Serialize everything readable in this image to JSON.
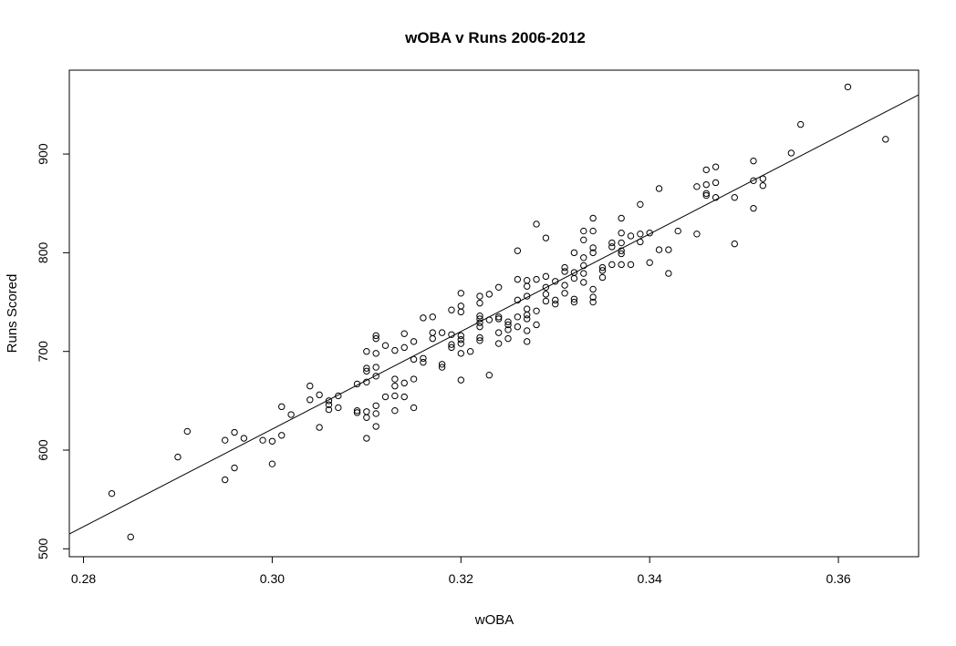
{
  "chart_data": {
    "type": "scatter",
    "title": "wOBA v Runs 2006-2012",
    "xlabel": "wOBA",
    "ylabel": "Runs Scored",
    "xlim": [
      0.2785,
      0.3685
    ],
    "ylim": [
      492,
      985
    ],
    "x_ticks": [
      "0.28",
      "0.30",
      "0.32",
      "0.34",
      "0.36"
    ],
    "y_ticks": [
      "500",
      "600",
      "700",
      "800",
      "900"
    ],
    "trend_line": {
      "x": [
        0.2785,
        0.3685
      ],
      "y": [
        515,
        960
      ]
    },
    "points": [
      [
        0.283,
        556
      ],
      [
        0.285,
        512
      ],
      [
        0.29,
        593
      ],
      [
        0.291,
        619
      ],
      [
        0.295,
        610
      ],
      [
        0.295,
        570
      ],
      [
        0.296,
        582
      ],
      [
        0.296,
        618
      ],
      [
        0.297,
        612
      ],
      [
        0.299,
        610
      ],
      [
        0.3,
        609
      ],
      [
        0.3,
        586
      ],
      [
        0.301,
        615
      ],
      [
        0.301,
        644
      ],
      [
        0.302,
        636
      ],
      [
        0.304,
        665
      ],
      [
        0.304,
        651
      ],
      [
        0.305,
        656
      ],
      [
        0.305,
        623
      ],
      [
        0.306,
        646
      ],
      [
        0.306,
        641
      ],
      [
        0.306,
        650
      ],
      [
        0.307,
        655
      ],
      [
        0.307,
        643
      ],
      [
        0.309,
        667
      ],
      [
        0.309,
        640
      ],
      [
        0.309,
        638
      ],
      [
        0.31,
        700
      ],
      [
        0.31,
        683
      ],
      [
        0.31,
        680
      ],
      [
        0.31,
        669
      ],
      [
        0.31,
        639
      ],
      [
        0.31,
        612
      ],
      [
        0.31,
        633
      ],
      [
        0.311,
        716
      ],
      [
        0.311,
        713
      ],
      [
        0.311,
        698
      ],
      [
        0.311,
        684
      ],
      [
        0.311,
        675
      ],
      [
        0.311,
        645
      ],
      [
        0.311,
        624
      ],
      [
        0.311,
        637
      ],
      [
        0.312,
        706
      ],
      [
        0.312,
        654
      ],
      [
        0.313,
        701
      ],
      [
        0.313,
        672
      ],
      [
        0.313,
        665
      ],
      [
        0.313,
        655
      ],
      [
        0.313,
        640
      ],
      [
        0.314,
        718
      ],
      [
        0.314,
        704
      ],
      [
        0.314,
        668
      ],
      [
        0.314,
        654
      ],
      [
        0.315,
        710
      ],
      [
        0.315,
        692
      ],
      [
        0.315,
        672
      ],
      [
        0.315,
        643
      ],
      [
        0.316,
        734
      ],
      [
        0.316,
        693
      ],
      [
        0.316,
        689
      ],
      [
        0.317,
        735
      ],
      [
        0.317,
        719
      ],
      [
        0.317,
        713
      ],
      [
        0.318,
        719
      ],
      [
        0.318,
        687
      ],
      [
        0.318,
        684
      ],
      [
        0.319,
        742
      ],
      [
        0.319,
        717
      ],
      [
        0.319,
        707
      ],
      [
        0.319,
        704
      ],
      [
        0.32,
        759
      ],
      [
        0.32,
        746
      ],
      [
        0.32,
        740
      ],
      [
        0.32,
        716
      ],
      [
        0.32,
        712
      ],
      [
        0.32,
        708
      ],
      [
        0.32,
        698
      ],
      [
        0.32,
        671
      ],
      [
        0.321,
        700
      ],
      [
        0.322,
        756
      ],
      [
        0.322,
        749
      ],
      [
        0.322,
        736
      ],
      [
        0.322,
        733
      ],
      [
        0.322,
        729
      ],
      [
        0.322,
        725
      ],
      [
        0.322,
        714
      ],
      [
        0.322,
        711
      ],
      [
        0.323,
        758
      ],
      [
        0.323,
        732
      ],
      [
        0.323,
        676
      ],
      [
        0.324,
        765
      ],
      [
        0.324,
        735
      ],
      [
        0.324,
        733
      ],
      [
        0.324,
        719
      ],
      [
        0.324,
        708
      ],
      [
        0.325,
        730
      ],
      [
        0.325,
        727
      ],
      [
        0.325,
        722
      ],
      [
        0.325,
        713
      ],
      [
        0.326,
        802
      ],
      [
        0.326,
        773
      ],
      [
        0.326,
        752
      ],
      [
        0.326,
        735
      ],
      [
        0.326,
        725
      ],
      [
        0.327,
        772
      ],
      [
        0.327,
        766
      ],
      [
        0.327,
        756
      ],
      [
        0.327,
        743
      ],
      [
        0.327,
        737
      ],
      [
        0.327,
        733
      ],
      [
        0.327,
        721
      ],
      [
        0.327,
        710
      ],
      [
        0.328,
        829
      ],
      [
        0.328,
        773
      ],
      [
        0.328,
        741
      ],
      [
        0.328,
        727
      ],
      [
        0.329,
        815
      ],
      [
        0.329,
        776
      ],
      [
        0.329,
        765
      ],
      [
        0.329,
        758
      ],
      [
        0.329,
        751
      ],
      [
        0.33,
        771
      ],
      [
        0.33,
        752
      ],
      [
        0.33,
        748
      ],
      [
        0.331,
        785
      ],
      [
        0.331,
        781
      ],
      [
        0.331,
        767
      ],
      [
        0.331,
        759
      ],
      [
        0.332,
        800
      ],
      [
        0.332,
        780
      ],
      [
        0.332,
        774
      ],
      [
        0.332,
        753
      ],
      [
        0.332,
        750
      ],
      [
        0.333,
        822
      ],
      [
        0.333,
        813
      ],
      [
        0.333,
        795
      ],
      [
        0.333,
        787
      ],
      [
        0.333,
        779
      ],
      [
        0.333,
        770
      ],
      [
        0.334,
        835
      ],
      [
        0.334,
        822
      ],
      [
        0.334,
        805
      ],
      [
        0.334,
        800
      ],
      [
        0.334,
        763
      ],
      [
        0.334,
        755
      ],
      [
        0.334,
        750
      ],
      [
        0.335,
        785
      ],
      [
        0.335,
        782
      ],
      [
        0.335,
        775
      ],
      [
        0.336,
        810
      ],
      [
        0.336,
        806
      ],
      [
        0.336,
        788
      ],
      [
        0.337,
        835
      ],
      [
        0.337,
        820
      ],
      [
        0.337,
        810
      ],
      [
        0.337,
        802
      ],
      [
        0.337,
        799
      ],
      [
        0.337,
        788
      ],
      [
        0.338,
        817
      ],
      [
        0.338,
        788
      ],
      [
        0.339,
        849
      ],
      [
        0.339,
        819
      ],
      [
        0.339,
        811
      ],
      [
        0.34,
        820
      ],
      [
        0.34,
        790
      ],
      [
        0.341,
        865
      ],
      [
        0.341,
        803
      ],
      [
        0.342,
        803
      ],
      [
        0.342,
        779
      ],
      [
        0.343,
        822
      ],
      [
        0.345,
        867
      ],
      [
        0.345,
        819
      ],
      [
        0.346,
        884
      ],
      [
        0.346,
        869
      ],
      [
        0.346,
        860
      ],
      [
        0.346,
        858
      ],
      [
        0.347,
        887
      ],
      [
        0.347,
        871
      ],
      [
        0.347,
        856
      ],
      [
        0.349,
        856
      ],
      [
        0.349,
        809
      ],
      [
        0.351,
        893
      ],
      [
        0.351,
        873
      ],
      [
        0.351,
        845
      ],
      [
        0.352,
        875
      ],
      [
        0.352,
        868
      ],
      [
        0.355,
        901
      ],
      [
        0.356,
        930
      ],
      [
        0.361,
        968
      ],
      [
        0.365,
        915
      ]
    ]
  }
}
